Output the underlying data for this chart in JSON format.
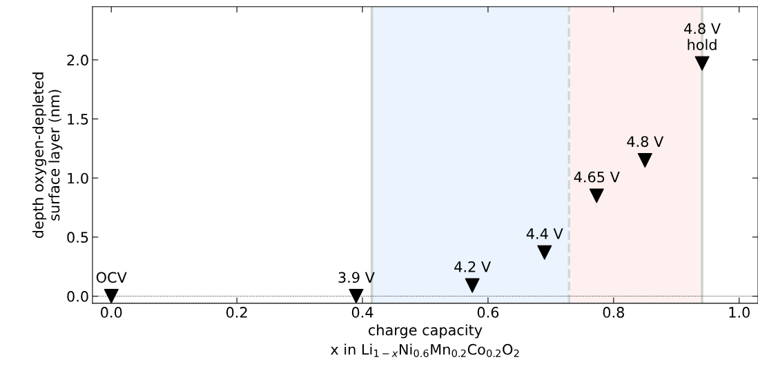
{
  "chart_data": {
    "type": "scatter",
    "xlabel": "charge capacity\nx in Li$_{1−x}$Ni$_{0.6}$Mn$_{0.2}$Co$_{0.2}$O$_{2}$",
    "ylabel": "depth oxygen-depleted\nsurface layer (nm)",
    "x": [
      0.0,
      0.39,
      0.575,
      0.69,
      0.773,
      0.85,
      0.941
    ],
    "series": [
      {
        "color": "#000000",
        "values": [
          0.0,
          0.0,
          0.09,
          0.37,
          0.85,
          1.15,
          1.97
        ]
      }
    ],
    "marker": "triangle",
    "xlim": [
      -0.03,
      1.03
    ],
    "ylim": [
      -0.06,
      2.45
    ],
    "xticks": [
      {
        "value": 0,
        "label": "0.0"
      },
      0.2,
      0.4,
      0.6,
      0.8,
      {
        "value": 1,
        "label": "1.0"
      }
    ],
    "yticks": [
      {
        "value": 0,
        "label": "0.0"
      },
      0.5,
      {
        "value": 1,
        "label": "1.0"
      },
      1.5,
      {
        "value": 2,
        "label": "2.0"
      }
    ],
    "grid": false,
    "legend": false,
    "bands": [
      {
        "axis": "x",
        "from": 0.415,
        "to": 0.729,
        "color": "#eaf3fe"
      },
      {
        "axis": "x",
        "from": 0.729,
        "to": 0.941,
        "color": "#fdf0ee"
      }
    ],
    "ref_lines": [
      {
        "axis": "x",
        "value": 0.415,
        "color": "#cdd2cb",
        "line_style": "solid"
      },
      {
        "axis": "x",
        "value": 0.729,
        "color": "#d3d6d6",
        "line_style": "dashed"
      },
      {
        "axis": "x",
        "value": 0.941,
        "color": "#cdd2cb",
        "line_style": "solid"
      },
      {
        "axis": "y",
        "value": 0,
        "color": "#000000",
        "line_style": "dotted"
      }
    ],
    "annotations": [
      {
        "text": "OCV",
        "x": 0.0,
        "y": 0.0
      },
      {
        "text": "3.9 V",
        "x": 0.39,
        "y": 0.0
      },
      {
        "text": "4.2 V",
        "x": 0.575,
        "y": 0.09
      },
      {
        "text": "4.4 V",
        "x": 0.69,
        "y": 0.37
      },
      {
        "text": "4.65 V",
        "x": 0.773,
        "y": 0.85
      },
      {
        "text": "4.8 V",
        "x": 0.85,
        "y": 1.15
      },
      {
        "text": "4.8 V\nhold",
        "x": 0.941,
        "y": 1.97
      }
    ]
  }
}
